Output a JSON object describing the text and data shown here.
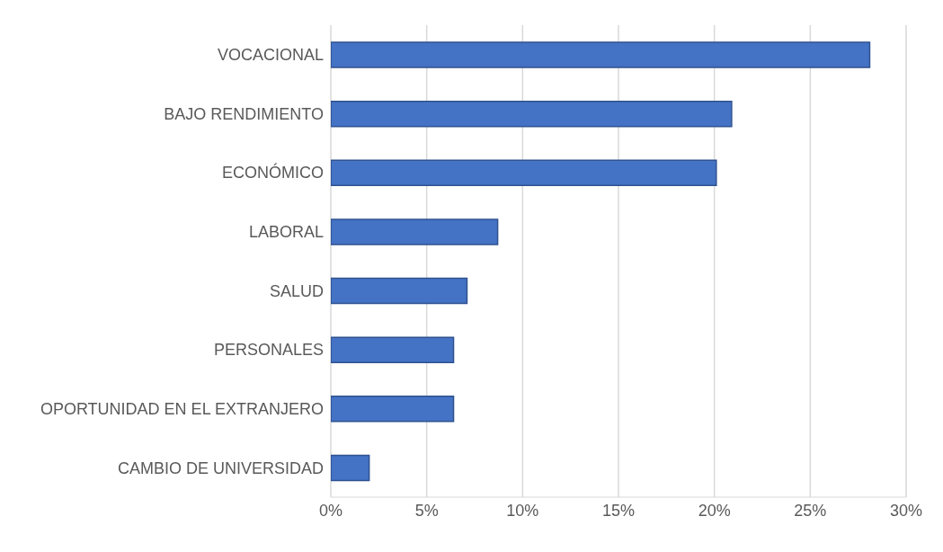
{
  "chart_data": {
    "type": "bar",
    "orientation": "horizontal",
    "categories": [
      "VOCACIONAL",
      "BAJO RENDIMIENTO",
      "ECONÓMICO",
      "LABORAL",
      "SALUD",
      "PERSONALES",
      "OPORTUNIDAD EN EL EXTRANJERO",
      "CAMBIO DE UNIVERSIDAD"
    ],
    "values": [
      28.1,
      20.9,
      20.1,
      8.7,
      7.1,
      6.4,
      6.4,
      2.0
    ],
    "color": "#4472c4",
    "xlim": [
      0,
      30
    ],
    "xticks": [
      {
        "value": 0,
        "label": "0%"
      },
      {
        "value": 5,
        "label": "5%"
      },
      {
        "value": 10,
        "label": "10%"
      },
      {
        "value": 15,
        "label": "15%"
      },
      {
        "value": 20,
        "label": "20%"
      },
      {
        "value": 25,
        "label": "25%"
      },
      {
        "value": 30,
        "label": "30%"
      }
    ],
    "grid": "x"
  }
}
